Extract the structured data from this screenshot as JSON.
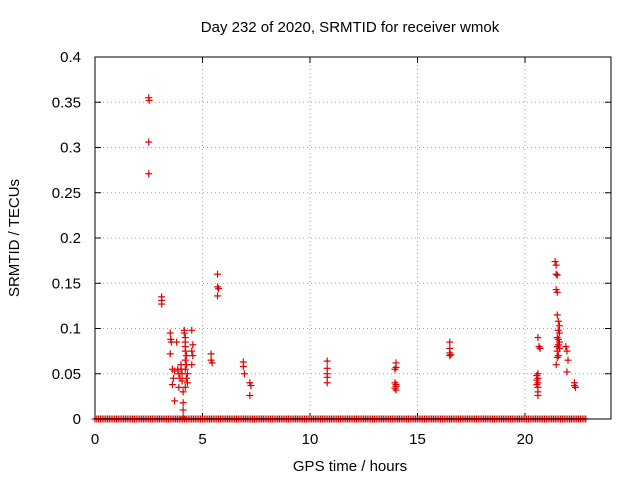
{
  "chart_data": {
    "type": "scatter",
    "title": "Day 232 of 2020, SRMTID for receiver wmok",
    "xlabel": "GPS time / hours",
    "ylabel": "SRMTID / TECUs",
    "xlim": [
      0,
      24
    ],
    "ylim": [
      0,
      0.4
    ],
    "xticks": [
      0,
      5,
      10,
      15,
      20
    ],
    "xtick_labels": [
      "0",
      "5",
      "10",
      "15",
      "20"
    ],
    "yticks": [
      0,
      0.05,
      0.1,
      0.15,
      0.2,
      0.25,
      0.3,
      0.35,
      0.4
    ],
    "ytick_labels": [
      "0",
      "0.05",
      "0.1",
      "0.15",
      "0.2",
      "0.25",
      "0.3",
      "0.35",
      "0.4"
    ],
    "grid": true,
    "marker": "+",
    "color": "#e00000",
    "baseline": {
      "y": 0,
      "x_start": 0,
      "x_end": 22.9,
      "step": 0.0833
    },
    "series": [
      {
        "name": "SRMTID",
        "points": [
          [
            2.5,
            0.355
          ],
          [
            2.52,
            0.352
          ],
          [
            2.5,
            0.306
          ],
          [
            2.5,
            0.271
          ],
          [
            3.1,
            0.135
          ],
          [
            3.1,
            0.131
          ],
          [
            3.1,
            0.127
          ],
          [
            3.5,
            0.095
          ],
          [
            3.52,
            0.088
          ],
          [
            3.55,
            0.085
          ],
          [
            3.5,
            0.072
          ],
          [
            3.6,
            0.055
          ],
          [
            3.7,
            0.053
          ],
          [
            3.65,
            0.045
          ],
          [
            3.6,
            0.038
          ],
          [
            3.7,
            0.02
          ],
          [
            3.8,
            0.085
          ],
          [
            3.85,
            0.055
          ],
          [
            3.9,
            0.05
          ],
          [
            3.95,
            0.045
          ],
          [
            3.9,
            0.035
          ],
          [
            4.0,
            0.06
          ],
          [
            4.0,
            0.055
          ],
          [
            4.05,
            0.05
          ],
          [
            4.05,
            0.042
          ],
          [
            4.1,
            0.03
          ],
          [
            4.1,
            0.018
          ],
          [
            4.1,
            0.01
          ],
          [
            4.1,
            0.002
          ],
          [
            4.15,
            0.098
          ],
          [
            4.15,
            0.095
          ],
          [
            4.2,
            0.09
          ],
          [
            4.2,
            0.085
          ],
          [
            4.2,
            0.08
          ],
          [
            4.2,
            0.075
          ],
          [
            4.25,
            0.07
          ],
          [
            4.2,
            0.065
          ],
          [
            4.25,
            0.06
          ],
          [
            4.2,
            0.055
          ],
          [
            4.3,
            0.05
          ],
          [
            4.25,
            0.045
          ],
          [
            4.3,
            0.04
          ],
          [
            4.2,
            0.035
          ],
          [
            4.5,
            0.098
          ],
          [
            4.55,
            0.082
          ],
          [
            4.5,
            0.075
          ],
          [
            4.55,
            0.07
          ],
          [
            4.5,
            0.06
          ],
          [
            5.4,
            0.072
          ],
          [
            5.4,
            0.065
          ],
          [
            5.45,
            0.062
          ],
          [
            5.7,
            0.16
          ],
          [
            5.7,
            0.146
          ],
          [
            5.75,
            0.144
          ],
          [
            5.7,
            0.136
          ],
          [
            6.9,
            0.063
          ],
          [
            6.9,
            0.058
          ],
          [
            6.95,
            0.05
          ],
          [
            7.2,
            0.04
          ],
          [
            7.25,
            0.037
          ],
          [
            7.2,
            0.026
          ],
          [
            10.8,
            0.064
          ],
          [
            10.8,
            0.056
          ],
          [
            10.8,
            0.05
          ],
          [
            10.8,
            0.046
          ],
          [
            10.8,
            0.04
          ],
          [
            14.0,
            0.062
          ],
          [
            14.0,
            0.057
          ],
          [
            13.95,
            0.055
          ],
          [
            13.95,
            0.04
          ],
          [
            14.0,
            0.038
          ],
          [
            14.0,
            0.036
          ],
          [
            13.95,
            0.034
          ],
          [
            14.0,
            0.032
          ],
          [
            16.5,
            0.085
          ],
          [
            16.5,
            0.078
          ],
          [
            16.5,
            0.073
          ],
          [
            16.55,
            0.071
          ],
          [
            16.5,
            0.07
          ],
          [
            20.6,
            0.09
          ],
          [
            20.65,
            0.08
          ],
          [
            20.7,
            0.078
          ],
          [
            20.6,
            0.05
          ],
          [
            20.55,
            0.048
          ],
          [
            20.6,
            0.045
          ],
          [
            20.55,
            0.043
          ],
          [
            20.6,
            0.04
          ],
          [
            20.55,
            0.038
          ],
          [
            20.6,
            0.035
          ],
          [
            20.6,
            0.03
          ],
          [
            20.6,
            0.026
          ],
          [
            21.4,
            0.174
          ],
          [
            21.45,
            0.17
          ],
          [
            21.45,
            0.16
          ],
          [
            21.5,
            0.159
          ],
          [
            21.45,
            0.143
          ],
          [
            21.5,
            0.14
          ],
          [
            21.5,
            0.115
          ],
          [
            21.55,
            0.108
          ],
          [
            21.6,
            0.103
          ],
          [
            21.55,
            0.098
          ],
          [
            21.6,
            0.095
          ],
          [
            21.5,
            0.09
          ],
          [
            21.55,
            0.088
          ],
          [
            21.6,
            0.085
          ],
          [
            21.55,
            0.082
          ],
          [
            21.5,
            0.08
          ],
          [
            21.6,
            0.078
          ],
          [
            21.5,
            0.075
          ],
          [
            21.55,
            0.07
          ],
          [
            21.5,
            0.068
          ],
          [
            21.45,
            0.06
          ],
          [
            21.9,
            0.08
          ],
          [
            21.95,
            0.075
          ],
          [
            22.0,
            0.065
          ],
          [
            21.95,
            0.052
          ],
          [
            22.3,
            0.04
          ],
          [
            22.3,
            0.037
          ],
          [
            22.35,
            0.035
          ]
        ]
      }
    ]
  }
}
